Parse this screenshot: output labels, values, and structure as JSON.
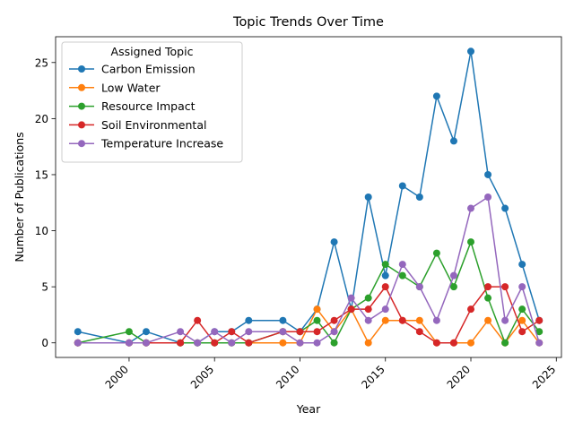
{
  "chart_data": {
    "type": "line",
    "title": "Topic Trends Over Time",
    "xlabel": "Year",
    "ylabel": "Number of Publications",
    "xlim": [
      1995.7,
      2025.3
    ],
    "ylim": [
      -1.3,
      27.3
    ],
    "x_ticks": [
      2000,
      2005,
      2010,
      2015,
      2020,
      2025
    ],
    "y_ticks": [
      0,
      5,
      10,
      15,
      20,
      25
    ],
    "grid": false,
    "legend": {
      "title": "Assigned Topic",
      "position": "top-left"
    },
    "series": [
      {
        "name": "Carbon Emission",
        "color": "#1f77b4",
        "x": [
          1997,
          2000,
          2001,
          2003,
          2004,
          2005,
          2006,
          2007,
          2009,
          2010,
          2011,
          2012,
          2013,
          2014,
          2015,
          2016,
          2017,
          2018,
          2019,
          2020,
          2021,
          2022,
          2023,
          2024
        ],
        "y": [
          1,
          0,
          1,
          0,
          0,
          1,
          1,
          2,
          2,
          1,
          3,
          9,
          3,
          13,
          6,
          14,
          13,
          22,
          18,
          26,
          15,
          12,
          7,
          2
        ]
      },
      {
        "name": "Low Water",
        "color": "#ff7f0e",
        "x": [
          1997,
          2000,
          2001,
          2003,
          2004,
          2005,
          2006,
          2007,
          2009,
          2010,
          2011,
          2012,
          2013,
          2014,
          2015,
          2016,
          2017,
          2018,
          2019,
          2020,
          2021,
          2022,
          2023,
          2024
        ],
        "y": [
          0,
          0,
          0,
          0,
          0,
          0,
          0,
          0,
          0,
          0,
          3,
          1,
          3,
          0,
          2,
          2,
          2,
          0,
          0,
          0,
          2,
          0,
          2,
          0
        ]
      },
      {
        "name": "Resource Impact",
        "color": "#2ca02c",
        "x": [
          1997,
          2000,
          2001,
          2003,
          2004,
          2005,
          2006,
          2007,
          2009,
          2010,
          2011,
          2012,
          2013,
          2014,
          2015,
          2016,
          2017,
          2018,
          2019,
          2020,
          2021,
          2022,
          2023,
          2024
        ],
        "y": [
          0,
          1,
          0,
          0,
          0,
          0,
          0,
          0,
          1,
          1,
          2,
          0,
          3,
          4,
          7,
          6,
          5,
          8,
          5,
          9,
          4,
          0,
          3,
          1
        ]
      },
      {
        "name": "Soil Environmental",
        "color": "#d62728",
        "x": [
          1997,
          2000,
          2001,
          2003,
          2004,
          2005,
          2006,
          2007,
          2009,
          2010,
          2011,
          2012,
          2013,
          2014,
          2015,
          2016,
          2017,
          2018,
          2019,
          2020,
          2021,
          2022,
          2023,
          2024
        ],
        "y": [
          0,
          0,
          0,
          0,
          2,
          0,
          1,
          0,
          1,
          1,
          1,
          2,
          3,
          3,
          5,
          2,
          1,
          0,
          0,
          3,
          5,
          5,
          1,
          2
        ]
      },
      {
        "name": "Temperature Increase",
        "color": "#9467bd",
        "x": [
          1997,
          2000,
          2001,
          2003,
          2004,
          2005,
          2006,
          2007,
          2009,
          2010,
          2011,
          2012,
          2013,
          2014,
          2015,
          2016,
          2017,
          2018,
          2019,
          2020,
          2021,
          2022,
          2023,
          2024
        ],
        "y": [
          0,
          0,
          0,
          1,
          0,
          1,
          0,
          1,
          1,
          0,
          0,
          1,
          4,
          2,
          3,
          7,
          5,
          2,
          6,
          12,
          13,
          2,
          5,
          0
        ]
      }
    ]
  }
}
